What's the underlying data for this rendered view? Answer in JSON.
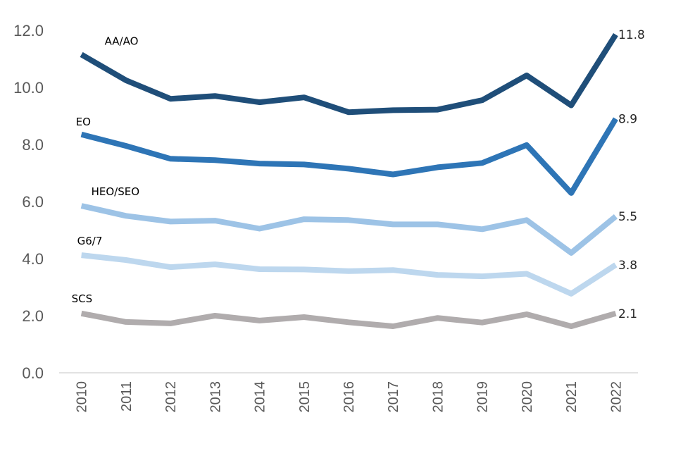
{
  "chart_data": {
    "type": "line",
    "title": "",
    "xlabel": "",
    "ylabel": "",
    "categories": [
      "2010",
      "2011",
      "2012",
      "2013",
      "2014",
      "2015",
      "2016",
      "2017",
      "2018",
      "2019",
      "2020",
      "2021",
      "2022"
    ],
    "ylim": [
      0,
      12
    ],
    "yticks": [
      "0.0",
      "2.0",
      "4.0",
      "6.0",
      "8.0",
      "10.0",
      "12.0"
    ],
    "grid": false,
    "legend": "none",
    "series": [
      {
        "name": "AA/AO",
        "color": "#1f4e79",
        "end_label": "11.8",
        "values": [
          11.15,
          10.25,
          9.6,
          9.7,
          9.48,
          9.65,
          9.13,
          9.2,
          9.22,
          9.55,
          10.42,
          9.37,
          11.85
        ]
      },
      {
        "name": "EO",
        "color": "#2e75b6",
        "end_label": "8.9",
        "values": [
          8.35,
          7.95,
          7.5,
          7.45,
          7.33,
          7.3,
          7.15,
          6.95,
          7.2,
          7.35,
          7.98,
          6.3,
          8.9
        ]
      },
      {
        "name": "HEO/SEO",
        "color": "#9dc3e6",
        "end_label": "5.5",
        "values": [
          5.85,
          5.5,
          5.3,
          5.33,
          5.05,
          5.38,
          5.35,
          5.2,
          5.2,
          5.03,
          5.35,
          4.2,
          5.48
        ]
      },
      {
        "name": "G6/7",
        "color": "#bdd7ee",
        "end_label": "3.8",
        "values": [
          4.12,
          3.95,
          3.7,
          3.8,
          3.63,
          3.62,
          3.56,
          3.6,
          3.43,
          3.38,
          3.47,
          2.77,
          3.78
        ]
      },
      {
        "name": "SCS",
        "color": "#b0acad",
        "end_label": "2.1",
        "values": [
          2.08,
          1.78,
          1.73,
          2.0,
          1.83,
          1.95,
          1.77,
          1.63,
          1.92,
          1.76,
          2.05,
          1.63,
          2.08
        ]
      }
    ]
  }
}
